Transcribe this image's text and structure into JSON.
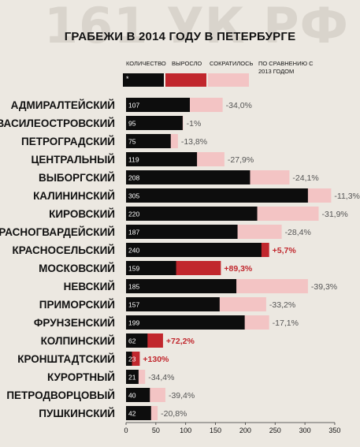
{
  "watermark": "161 УК РФ",
  "title": "ГРАБЕЖИ В 2014 ГОДУ В ПЕТЕРБУРГЕ",
  "legend": {
    "quantity": "КОЛИЧЕСТВО",
    "increase": "ВЫРОСЛО",
    "decrease": "СОКРАТИЛОСЬ",
    "comparison": "ПО СРАВНЕНИЮ С 2013 ГОДОМ",
    "swatch_mark": "*"
  },
  "colors": {
    "bar": "#0d0d0d",
    "increase": "#c1272d",
    "decrease": "#f3c4c4",
    "increase_text": "#c1272d",
    "decrease_text": "#555555"
  },
  "chart_data": {
    "type": "bar",
    "orientation": "horizontal",
    "title": "ГРАБЕЖИ В 2014 ГОДУ В ПЕТЕРБУРГЕ",
    "xlim": [
      0,
      350
    ],
    "xticks": [
      0,
      50,
      100,
      150,
      200,
      250,
      300,
      350
    ],
    "categories": [
      "АДМИРАЛТЕЙСКИЙ",
      "ВАСИЛЕОСТРОВСКИЙ",
      "ПЕТРОГРАДСКИЙ",
      "ЦЕНТРАЛЬНЫЙ",
      "ВЫБОРГСКИЙ",
      "КАЛИНИНСКИЙ",
      "КИРОВСКИЙ",
      "КРАСНОГВАРДЕЙСКИЙ",
      "КРАСНОСЕЛЬСКИЙ",
      "МОСКОВСКИЙ",
      "НЕВСКИЙ",
      "ПРИМОРСКИЙ",
      "ФРУНЗЕНСКИЙ",
      "КОЛПИНСКИЙ",
      "КРОНШТАДТСКИЙ",
      "КУРОРТНЫЙ",
      "ПЕТРОДВОРЦОВЫЙ",
      "ПУШКИНСКИЙ"
    ],
    "values_2014": [
      107,
      95,
      75,
      119,
      208,
      305,
      220,
      187,
      240,
      159,
      185,
      157,
      199,
      62,
      23,
      21,
      40,
      42
    ],
    "values_2013": [
      162,
      96,
      87,
      165,
      274,
      344,
      323,
      261,
      227,
      84,
      305,
      235,
      240,
      36,
      10,
      32,
      66,
      53
    ],
    "change_labels": [
      "-34,0%",
      "-1%",
      "-13,8%",
      "-27,9%",
      "-24,1%",
      "-11,3%",
      "-31,9%",
      "-28,4%",
      "+5,7%",
      "+89,3%",
      "-39,3%",
      "-33,2%",
      "-17,1%",
      "+72,2%",
      "+130%",
      "-34,4%",
      "-39,4%",
      "-20,8%"
    ]
  }
}
